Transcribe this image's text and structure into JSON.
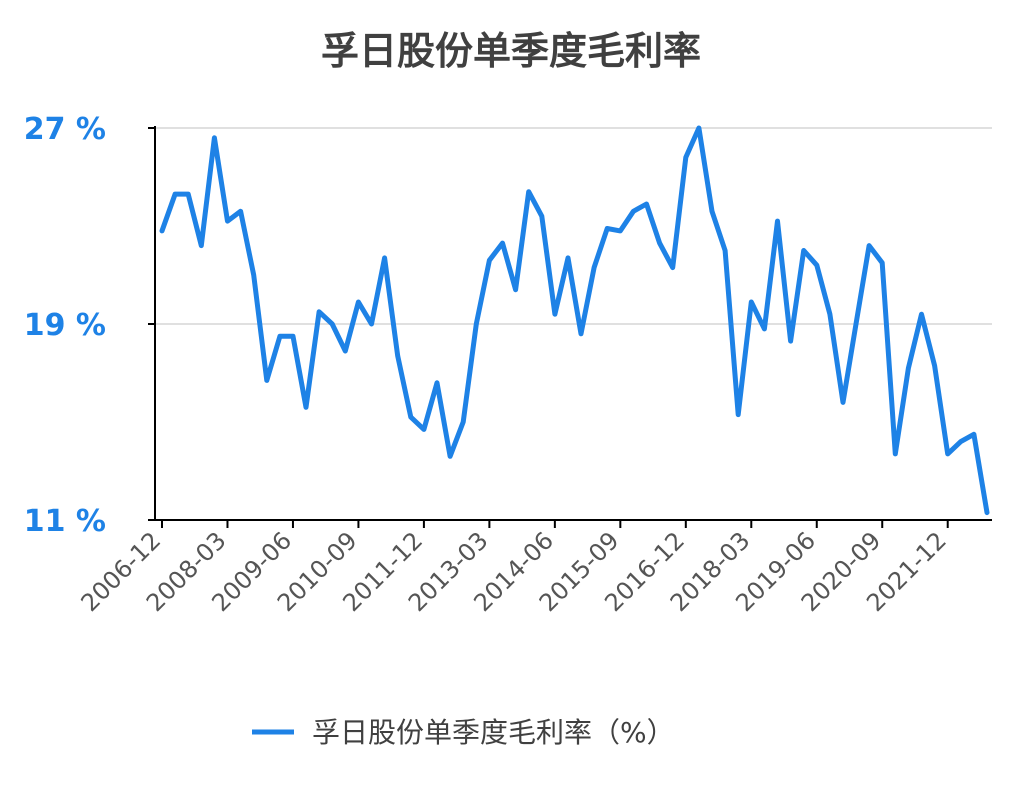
{
  "chart_data": {
    "type": "line",
    "title": "孚日股份单季度毛利率",
    "xlabel": "",
    "ylabel": "",
    "ylim": [
      11,
      27
    ],
    "y_ticks": [
      11,
      19,
      27
    ],
    "y_tick_labels": [
      "11 %",
      "19 %",
      "27 %"
    ],
    "x_ticks": [
      "2006-12",
      "2008-03",
      "2009-06",
      "2010-09",
      "2011-12",
      "2013-03",
      "2014-06",
      "2015-09",
      "2016-12",
      "2018-03",
      "2019-06",
      "2020-09",
      "2021-12"
    ],
    "grid": true,
    "legend_position": "bottom",
    "x": [
      "2006-12",
      "2007-03",
      "2007-06",
      "2007-09",
      "2007-12",
      "2008-03",
      "2008-06",
      "2008-09",
      "2008-12",
      "2009-03",
      "2009-06",
      "2009-09",
      "2009-12",
      "2010-03",
      "2010-06",
      "2010-09",
      "2010-12",
      "2011-03",
      "2011-06",
      "2011-09",
      "2011-12",
      "2012-03",
      "2012-06",
      "2012-09",
      "2012-12",
      "2013-03",
      "2013-06",
      "2013-09",
      "2013-12",
      "2014-03",
      "2014-06",
      "2014-09",
      "2014-12",
      "2015-03",
      "2015-06",
      "2015-09",
      "2015-12",
      "2016-03",
      "2016-06",
      "2016-09",
      "2016-12",
      "2017-03",
      "2017-06",
      "2017-09",
      "2017-12",
      "2018-03",
      "2018-06",
      "2018-09",
      "2018-12",
      "2019-03",
      "2019-06",
      "2019-09",
      "2019-12",
      "2020-03",
      "2020-06",
      "2020-09",
      "2020-12",
      "2021-03",
      "2021-06",
      "2021-09",
      "2021-12",
      "2022-03",
      "2022-06",
      "2022-09"
    ],
    "series": [
      {
        "name": "孚日股份单季度毛利率（%）",
        "color": "#1e82e6",
        "values": [
          22.8,
          24.3,
          24.3,
          22.2,
          26.6,
          23.2,
          23.6,
          21.0,
          16.7,
          18.5,
          18.5,
          15.6,
          19.5,
          19.0,
          17.9,
          19.9,
          19.0,
          21.7,
          17.7,
          15.2,
          14.7,
          16.6,
          13.6,
          15.0,
          19.0,
          21.6,
          22.3,
          20.4,
          24.4,
          23.4,
          19.4,
          21.7,
          18.6,
          21.3,
          22.9,
          22.8,
          23.6,
          23.9,
          22.3,
          21.3,
          25.8,
          27.0,
          23.6,
          22.0,
          15.3,
          19.9,
          18.8,
          23.2,
          18.3,
          22.0,
          21.4,
          19.4,
          15.8,
          19.0,
          22.2,
          21.5,
          13.7,
          17.2,
          19.4,
          17.3,
          13.7,
          14.2,
          14.5,
          11.3
        ]
      }
    ]
  }
}
